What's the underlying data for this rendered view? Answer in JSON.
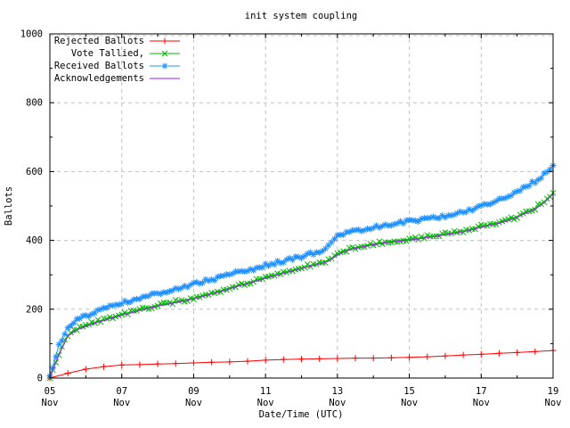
{
  "title": "init system coupling",
  "axes": {
    "x_label": "Date/Time (UTC)",
    "y_label": "Ballots",
    "x_range_days": [
      5,
      19
    ],
    "y_range": [
      0,
      1000
    ],
    "x_ticks": [
      {
        "day": 5,
        "line1": "05",
        "line2": "Nov"
      },
      {
        "day": 7,
        "line1": "07",
        "line2": "Nov"
      },
      {
        "day": 9,
        "line1": "09",
        "line2": "Nov"
      },
      {
        "day": 11,
        "line1": "11",
        "line2": "Nov"
      },
      {
        "day": 13,
        "line1": "13",
        "line2": "Nov"
      },
      {
        "day": 15,
        "line1": "15",
        "line2": "Nov"
      },
      {
        "day": 17,
        "line1": "17",
        "line2": "Nov"
      },
      {
        "day": 19,
        "line1": "19",
        "line2": "Nov"
      }
    ],
    "x_minor_days": [
      6,
      8,
      10,
      12,
      14,
      16,
      18
    ],
    "y_ticks": [
      {
        "value": 0,
        "label": "0"
      },
      {
        "value": 200,
        "label": "200"
      },
      {
        "value": 400,
        "label": "400"
      },
      {
        "value": 600,
        "label": "600"
      },
      {
        "value": 800,
        "label": "800"
      },
      {
        "value": 1000,
        "label": "1000"
      }
    ],
    "y_minor": [
      100,
      300,
      500,
      700,
      900
    ]
  },
  "colors": {
    "rejected": "#ff0000",
    "tallied": "#00b800",
    "received": "#1e90ff",
    "acknowledgements": "#a020f0",
    "grid": "#c0c0c0",
    "border": "#000000",
    "background": "#ffffff"
  },
  "chart_data": {
    "type": "line",
    "title": "init system coupling",
    "xlabel": "Date/Time (UTC)",
    "ylabel": "Ballots",
    "x_unit": "day of November (UTC)",
    "xlim_days": [
      5,
      19
    ],
    "ylim": [
      0,
      1000
    ],
    "grid": true,
    "legend_position": "top-left-inside",
    "series": [
      {
        "name": "Rejected Ballots",
        "color": "#ff0000",
        "marker": "plus",
        "marker_density": 1,
        "points": [
          [
            5.0,
            0
          ],
          [
            5.5,
            14
          ],
          [
            6.0,
            26
          ],
          [
            6.5,
            33
          ],
          [
            7.0,
            38
          ],
          [
            7.5,
            39
          ],
          [
            8.0,
            41
          ],
          [
            8.5,
            42
          ],
          [
            9.0,
            44
          ],
          [
            9.5,
            46
          ],
          [
            10.0,
            47
          ],
          [
            10.5,
            49
          ],
          [
            11.0,
            52
          ],
          [
            11.5,
            54
          ],
          [
            12.0,
            55
          ],
          [
            12.5,
            56
          ],
          [
            13.0,
            57
          ],
          [
            13.5,
            58
          ],
          [
            14.0,
            58
          ],
          [
            14.5,
            59
          ],
          [
            15.0,
            60
          ],
          [
            15.5,
            62
          ],
          [
            16.0,
            64
          ],
          [
            16.5,
            67
          ],
          [
            17.0,
            69
          ],
          [
            17.5,
            72
          ],
          [
            18.0,
            74
          ],
          [
            18.5,
            77
          ],
          [
            19.0,
            80
          ]
        ]
      },
      {
        "name": "Vote Tallied,",
        "color": "#00b800",
        "marker": "cross",
        "marker_density": 3,
        "points": [
          [
            5.0,
            1
          ],
          [
            5.25,
            70
          ],
          [
            5.5,
            125
          ],
          [
            5.75,
            143
          ],
          [
            6.0,
            153
          ],
          [
            6.25,
            162
          ],
          [
            6.5,
            170
          ],
          [
            6.75,
            178
          ],
          [
            7.0,
            185
          ],
          [
            7.25,
            192
          ],
          [
            7.5,
            199
          ],
          [
            7.75,
            206
          ],
          [
            8.0,
            212
          ],
          [
            8.25,
            217
          ],
          [
            8.5,
            222
          ],
          [
            8.75,
            227
          ],
          [
            9.0,
            233
          ],
          [
            9.25,
            240
          ],
          [
            9.5,
            247
          ],
          [
            9.75,
            254
          ],
          [
            10.0,
            262
          ],
          [
            10.25,
            270
          ],
          [
            10.5,
            277
          ],
          [
            10.75,
            285
          ],
          [
            11.0,
            293
          ],
          [
            11.25,
            300
          ],
          [
            11.5,
            307
          ],
          [
            11.75,
            314
          ],
          [
            12.0,
            321
          ],
          [
            12.25,
            328
          ],
          [
            12.5,
            334
          ],
          [
            12.75,
            342
          ],
          [
            13.0,
            360
          ],
          [
            13.25,
            372
          ],
          [
            13.5,
            380
          ],
          [
            13.75,
            385
          ],
          [
            14.0,
            390
          ],
          [
            14.25,
            394
          ],
          [
            14.5,
            398
          ],
          [
            14.75,
            401
          ],
          [
            15.0,
            404
          ],
          [
            15.25,
            407
          ],
          [
            15.5,
            411
          ],
          [
            15.75,
            415
          ],
          [
            16.0,
            419
          ],
          [
            16.25,
            423
          ],
          [
            16.5,
            428
          ],
          [
            16.75,
            434
          ],
          [
            17.0,
            441
          ],
          [
            17.25,
            447
          ],
          [
            17.5,
            453
          ],
          [
            17.75,
            460
          ],
          [
            18.0,
            470
          ],
          [
            18.25,
            482
          ],
          [
            18.5,
            494
          ],
          [
            18.75,
            512
          ],
          [
            19.0,
            538
          ]
        ]
      },
      {
        "name": "Received Ballots",
        "color": "#1e90ff",
        "marker": "star",
        "marker_density": 3,
        "points": [
          [
            5.0,
            3
          ],
          [
            5.25,
            95
          ],
          [
            5.5,
            150
          ],
          [
            5.75,
            168
          ],
          [
            6.0,
            180
          ],
          [
            6.25,
            192
          ],
          [
            6.5,
            205
          ],
          [
            6.75,
            212
          ],
          [
            7.0,
            218
          ],
          [
            7.25,
            225
          ],
          [
            7.5,
            232
          ],
          [
            7.75,
            240
          ],
          [
            8.0,
            247
          ],
          [
            8.25,
            253
          ],
          [
            8.5,
            260
          ],
          [
            8.75,
            266
          ],
          [
            9.0,
            273
          ],
          [
            9.25,
            280
          ],
          [
            9.5,
            286
          ],
          [
            9.75,
            293
          ],
          [
            10.0,
            300
          ],
          [
            10.25,
            307
          ],
          [
            10.5,
            313
          ],
          [
            10.75,
            320
          ],
          [
            11.0,
            327
          ],
          [
            11.25,
            333
          ],
          [
            11.5,
            340
          ],
          [
            11.75,
            346
          ],
          [
            12.0,
            353
          ],
          [
            12.25,
            360
          ],
          [
            12.5,
            365
          ],
          [
            12.75,
            385
          ],
          [
            13.0,
            412
          ],
          [
            13.25,
            420
          ],
          [
            13.5,
            427
          ],
          [
            13.75,
            433
          ],
          [
            14.0,
            438
          ],
          [
            14.25,
            443
          ],
          [
            14.5,
            447
          ],
          [
            14.75,
            451
          ],
          [
            15.0,
            455
          ],
          [
            15.25,
            459
          ],
          [
            15.5,
            463
          ],
          [
            15.75,
            467
          ],
          [
            16.0,
            471
          ],
          [
            16.25,
            476
          ],
          [
            16.5,
            482
          ],
          [
            16.75,
            490
          ],
          [
            17.0,
            500
          ],
          [
            17.25,
            508
          ],
          [
            17.5,
            516
          ],
          [
            17.75,
            526
          ],
          [
            18.0,
            540
          ],
          [
            18.25,
            556
          ],
          [
            18.5,
            572
          ],
          [
            18.75,
            590
          ],
          [
            19.0,
            618
          ]
        ]
      },
      {
        "name": "Acknowledgements",
        "color": "#a020f0",
        "marker": "none",
        "marker_density": 0,
        "points": [
          [
            5.0,
            0
          ],
          [
            5.25,
            67
          ],
          [
            5.5,
            122
          ],
          [
            5.75,
            140
          ],
          [
            6.0,
            150
          ],
          [
            6.25,
            159
          ],
          [
            6.5,
            167
          ],
          [
            6.75,
            175
          ],
          [
            7.0,
            182
          ],
          [
            7.25,
            189
          ],
          [
            7.5,
            196
          ],
          [
            7.75,
            203
          ],
          [
            8.0,
            209
          ],
          [
            8.25,
            214
          ],
          [
            8.5,
            219
          ],
          [
            8.75,
            224
          ],
          [
            9.0,
            230
          ],
          [
            9.25,
            237
          ],
          [
            9.5,
            244
          ],
          [
            9.75,
            251
          ],
          [
            10.0,
            259
          ],
          [
            10.25,
            267
          ],
          [
            10.5,
            274
          ],
          [
            10.75,
            282
          ],
          [
            11.0,
            290
          ],
          [
            11.25,
            297
          ],
          [
            11.5,
            304
          ],
          [
            11.75,
            311
          ],
          [
            12.0,
            318
          ],
          [
            12.25,
            325
          ],
          [
            12.5,
            331
          ],
          [
            12.75,
            339
          ],
          [
            13.0,
            357
          ],
          [
            13.25,
            369
          ],
          [
            13.5,
            377
          ],
          [
            13.75,
            382
          ],
          [
            14.0,
            387
          ],
          [
            14.25,
            391
          ],
          [
            14.5,
            395
          ],
          [
            14.75,
            398
          ],
          [
            15.0,
            401
          ],
          [
            15.25,
            404
          ],
          [
            15.5,
            408
          ],
          [
            15.75,
            412
          ],
          [
            16.0,
            416
          ],
          [
            16.25,
            420
          ],
          [
            16.5,
            425
          ],
          [
            16.75,
            431
          ],
          [
            17.0,
            438
          ],
          [
            17.25,
            444
          ],
          [
            17.5,
            450
          ],
          [
            17.75,
            457
          ],
          [
            18.0,
            467
          ],
          [
            18.25,
            479
          ],
          [
            18.5,
            491
          ],
          [
            18.75,
            509
          ],
          [
            19.0,
            535
          ]
        ]
      }
    ]
  }
}
